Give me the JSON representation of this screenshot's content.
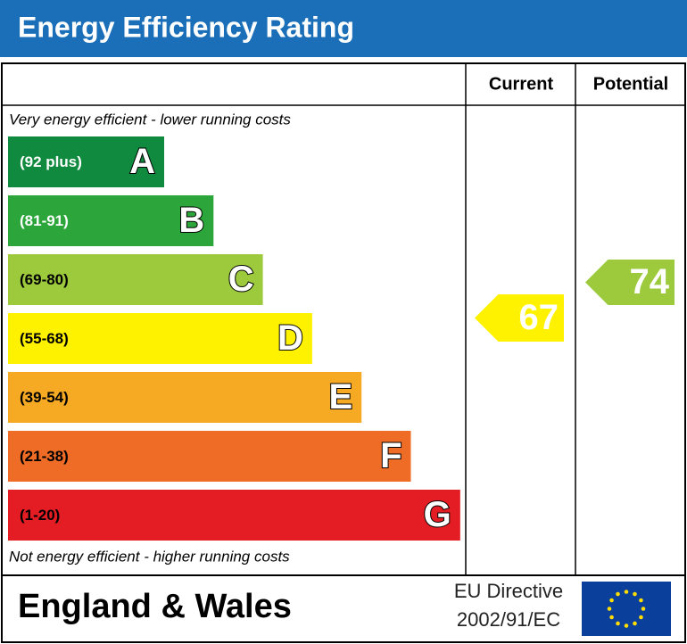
{
  "header": {
    "title": "Energy Efficiency Rating"
  },
  "columns": {
    "current": "Current",
    "potential": "Potential"
  },
  "top_note": "Very energy efficient - lower running costs",
  "bands": [
    {
      "range": "(92 plus)",
      "letter": "A",
      "color": "#0f8a3e",
      "text_color": "#ffffff"
    },
    {
      "range": "(81-91)",
      "letter": "B",
      "color": "#2ca63a",
      "text_color": "#ffffff"
    },
    {
      "range": "(69-80)",
      "letter": "C",
      "color": "#9cca3c",
      "text_color": "#000000"
    },
    {
      "range": "(55-68)",
      "letter": "D",
      "color": "#fff200",
      "text_color": "#000000"
    },
    {
      "range": "(39-54)",
      "letter": "E",
      "color": "#f6a923",
      "text_color": "#000000"
    },
    {
      "range": "(21-38)",
      "letter": "F",
      "color": "#ee6c25",
      "text_color": "#000000"
    },
    {
      "range": "(1-20)",
      "letter": "G",
      "color": "#e31d23",
      "text_color": "#000000"
    }
  ],
  "bottom_note": "Not energy efficient - higher running costs",
  "current": {
    "value": "67",
    "color": "#fff200"
  },
  "potential": {
    "value": "74",
    "color": "#9cca3c"
  },
  "footer": {
    "region": "England & Wales",
    "directive_line1": "EU Directive",
    "directive_line2": "2002/91/EC"
  }
}
